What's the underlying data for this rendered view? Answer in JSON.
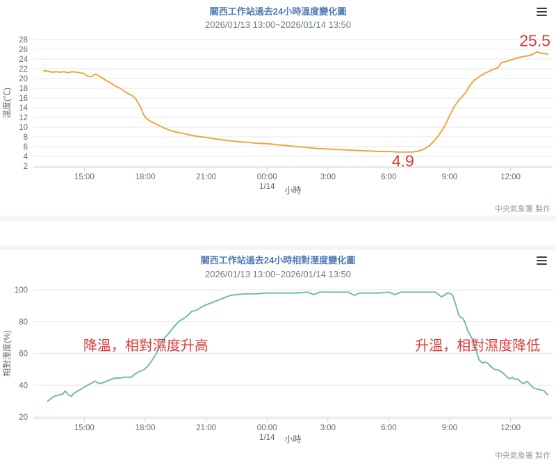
{
  "colors": {
    "title_blue": "#4e7ab5",
    "subtitle_gray": "#6e7a86",
    "axis_text": "#666666",
    "gridline": "#e7e7e7",
    "axis_line": "#ccd1d9",
    "temperature_line": "#efa63c",
    "humidity_line": "#70b9b6",
    "annotation_red": "#dc3a3a",
    "credit_gray": "#9aa0a6"
  },
  "chart_data": [
    {
      "type": "line",
      "title": "關西工作站過去24小時溫度變化圖",
      "subtitle": "2026/01/13 13:00~2026/01/14 13:50",
      "credit": "中央氣象署 製作",
      "xlabel": "小時",
      "ylabel": "溫度(℃)",
      "series_name": "temperature-series",
      "color": "#efa63c",
      "ylim": [
        2,
        28
      ],
      "ytick_step": 2,
      "x_unit": "hours since 2026/01/13 13:00",
      "xlim_hours": [
        0,
        24.83
      ],
      "grid": "horizontal",
      "legend": "none",
      "xticks": [
        {
          "t": 2,
          "label": "15:00"
        },
        {
          "t": 5,
          "label": "18:00"
        },
        {
          "t": 8,
          "label": "21:00"
        },
        {
          "t": 11,
          "label": "00:00",
          "sub": "1/14"
        },
        {
          "t": 14,
          "label": "3:00"
        },
        {
          "t": 17,
          "label": "6:00"
        },
        {
          "t": 20,
          "label": "9:00"
        },
        {
          "t": 23,
          "label": "12:00"
        }
      ],
      "series": [
        [
          0,
          21.6
        ],
        [
          0.2,
          21.5
        ],
        [
          0.4,
          21.3
        ],
        [
          0.6,
          21.4
        ],
        [
          0.8,
          21.3
        ],
        [
          1.0,
          21.4
        ],
        [
          1.2,
          21.2
        ],
        [
          1.4,
          21.4
        ],
        [
          1.6,
          21.3
        ],
        [
          1.8,
          21.2
        ],
        [
          2.0,
          21.0
        ],
        [
          2.15,
          20.5
        ],
        [
          2.35,
          20.4
        ],
        [
          2.55,
          20.9
        ],
        [
          2.7,
          20.6
        ],
        [
          2.85,
          20.2
        ],
        [
          3.0,
          19.8
        ],
        [
          3.2,
          19.3
        ],
        [
          3.4,
          18.8
        ],
        [
          3.6,
          18.3
        ],
        [
          3.8,
          17.9
        ],
        [
          4.0,
          17.3
        ],
        [
          4.2,
          16.8
        ],
        [
          4.35,
          16.5
        ],
        [
          4.5,
          16.0
        ],
        [
          4.65,
          15.0
        ],
        [
          4.8,
          13.8
        ],
        [
          4.9,
          12.8
        ],
        [
          5.0,
          12.0
        ],
        [
          5.15,
          11.5
        ],
        [
          5.3,
          11.1
        ],
        [
          5.5,
          10.7
        ],
        [
          5.75,
          10.2
        ],
        [
          6.0,
          9.7
        ],
        [
          6.25,
          9.3
        ],
        [
          6.5,
          9.0
        ],
        [
          6.75,
          8.8
        ],
        [
          7.0,
          8.6
        ],
        [
          7.3,
          8.3
        ],
        [
          7.6,
          8.1
        ],
        [
          8.0,
          7.9
        ],
        [
          8.4,
          7.6
        ],
        [
          8.8,
          7.4
        ],
        [
          9.2,
          7.2
        ],
        [
          9.6,
          7.0
        ],
        [
          10.0,
          6.9
        ],
        [
          10.5,
          6.7
        ],
        [
          11.0,
          6.6
        ],
        [
          11.5,
          6.4
        ],
        [
          12.0,
          6.2
        ],
        [
          12.5,
          6.0
        ],
        [
          13.0,
          5.8
        ],
        [
          13.5,
          5.6
        ],
        [
          14.0,
          5.5
        ],
        [
          14.5,
          5.4
        ],
        [
          15.0,
          5.3
        ],
        [
          15.5,
          5.2
        ],
        [
          16.0,
          5.1
        ],
        [
          16.5,
          5.0
        ],
        [
          17.0,
          5.0
        ],
        [
          17.4,
          4.9
        ],
        [
          17.8,
          4.9
        ],
        [
          18.2,
          4.9
        ],
        [
          18.5,
          5.1
        ],
        [
          18.8,
          5.6
        ],
        [
          19.0,
          6.2
        ],
        [
          19.2,
          7.0
        ],
        [
          19.4,
          8.0
        ],
        [
          19.6,
          9.2
        ],
        [
          19.8,
          10.6
        ],
        [
          20.0,
          12.4
        ],
        [
          20.2,
          14.0
        ],
        [
          20.4,
          15.3
        ],
        [
          20.6,
          16.2
        ],
        [
          20.8,
          17.2
        ],
        [
          21.0,
          18.6
        ],
        [
          21.2,
          19.6
        ],
        [
          21.5,
          20.5
        ],
        [
          21.8,
          21.2
        ],
        [
          22.1,
          21.8
        ],
        [
          22.4,
          22.3
        ],
        [
          22.55,
          23.3
        ],
        [
          22.8,
          23.5
        ],
        [
          23.0,
          23.8
        ],
        [
          23.3,
          24.2
        ],
        [
          23.6,
          24.5
        ],
        [
          23.9,
          24.7
        ],
        [
          24.1,
          25.0
        ],
        [
          24.3,
          25.5
        ],
        [
          24.5,
          25.2
        ],
        [
          24.7,
          25.1
        ],
        [
          24.83,
          25.0
        ]
      ],
      "annotations": [
        {
          "text": "25.5",
          "t": 24.2,
          "v": 25.5,
          "dy": -8,
          "size": 23
        },
        {
          "text": "4.9",
          "t": 17.7,
          "v": 4.9,
          "dy": 21,
          "size": 23
        }
      ]
    },
    {
      "type": "line",
      "title": "關西工作站過去24小時相對溼度變化圖",
      "subtitle": "2026/01/13 13:00~2026/01/14 13:50",
      "credit": "中央氣象署 製作",
      "xlabel": "小時",
      "ylabel": "相對溼度(%)",
      "series_name": "relative-humidity-series",
      "color": "#70b9b6",
      "ylim": [
        20,
        100
      ],
      "ytick_step": 20,
      "x_unit": "hours since 2026/01/13 13:00",
      "xlim_hours": [
        0,
        24.83
      ],
      "grid": "horizontal",
      "legend": "none",
      "xticks": [
        {
          "t": 2,
          "label": "15:00"
        },
        {
          "t": 5,
          "label": "18:00"
        },
        {
          "t": 8,
          "label": "21:00"
        },
        {
          "t": 11,
          "label": "00:00",
          "sub": "1/14"
        },
        {
          "t": 14,
          "label": "3:00"
        },
        {
          "t": 17,
          "label": "6:00"
        },
        {
          "t": 20,
          "label": "9:00"
        },
        {
          "t": 23,
          "label": "12:00"
        }
      ],
      "series": [
        [
          0.2,
          30
        ],
        [
          0.35,
          31.5
        ],
        [
          0.5,
          33
        ],
        [
          0.65,
          33.5
        ],
        [
          0.8,
          34
        ],
        [
          0.95,
          34.5
        ],
        [
          1.05,
          36.5
        ],
        [
          1.2,
          34
        ],
        [
          1.35,
          33
        ],
        [
          1.5,
          35
        ],
        [
          1.7,
          36.5
        ],
        [
          1.9,
          38
        ],
        [
          2.1,
          39.5
        ],
        [
          2.3,
          41
        ],
        [
          2.55,
          42.5
        ],
        [
          2.7,
          41
        ],
        [
          2.9,
          41.5
        ],
        [
          3.1,
          42.5
        ],
        [
          3.3,
          43.5
        ],
        [
          3.5,
          44.5
        ],
        [
          3.75,
          44.5
        ],
        [
          4.0,
          45
        ],
        [
          4.3,
          45
        ],
        [
          4.5,
          47
        ],
        [
          4.7,
          48.5
        ],
        [
          4.9,
          49.5
        ],
        [
          5.1,
          51.5
        ],
        [
          5.25,
          54
        ],
        [
          5.4,
          57
        ],
        [
          5.55,
          60
        ],
        [
          5.7,
          64
        ],
        [
          5.85,
          68
        ],
        [
          6.0,
          70.5
        ],
        [
          6.15,
          72.5
        ],
        [
          6.3,
          75
        ],
        [
          6.5,
          78
        ],
        [
          6.7,
          80.5
        ],
        [
          6.9,
          82
        ],
        [
          7.1,
          84
        ],
        [
          7.3,
          86.5
        ],
        [
          7.5,
          87
        ],
        [
          7.7,
          88.5
        ],
        [
          7.9,
          90
        ],
        [
          8.1,
          91
        ],
        [
          8.3,
          92
        ],
        [
          8.6,
          93.5
        ],
        [
          8.9,
          95
        ],
        [
          9.2,
          96.5
        ],
        [
          9.5,
          97
        ],
        [
          10.0,
          97.5
        ],
        [
          10.5,
          97.5
        ],
        [
          11.0,
          98
        ],
        [
          11.5,
          98
        ],
        [
          12.0,
          98
        ],
        [
          12.5,
          98
        ],
        [
          13.0,
          98.5
        ],
        [
          13.3,
          97
        ],
        [
          13.6,
          98.5
        ],
        [
          14.0,
          98.5
        ],
        [
          14.5,
          98.5
        ],
        [
          15.0,
          98.5
        ],
        [
          15.3,
          96.5
        ],
        [
          15.6,
          98
        ],
        [
          16.0,
          98
        ],
        [
          16.5,
          98
        ],
        [
          17.0,
          98.5
        ],
        [
          17.3,
          97
        ],
        [
          17.6,
          98.5
        ],
        [
          18.0,
          98.5
        ],
        [
          18.5,
          98.5
        ],
        [
          19.0,
          98.5
        ],
        [
          19.3,
          98.5
        ],
        [
          19.6,
          95.5
        ],
        [
          19.9,
          98
        ],
        [
          20.05,
          97.5
        ],
        [
          20.15,
          96.5
        ],
        [
          20.3,
          90.5
        ],
        [
          20.45,
          84
        ],
        [
          20.55,
          82.5
        ],
        [
          20.65,
          82
        ],
        [
          20.75,
          79.5
        ],
        [
          20.9,
          74
        ],
        [
          21.1,
          69.5
        ],
        [
          21.3,
          62
        ],
        [
          21.45,
          56
        ],
        [
          21.6,
          54
        ],
        [
          21.75,
          54.5
        ],
        [
          21.9,
          53.5
        ],
        [
          22.0,
          52
        ],
        [
          22.2,
          50
        ],
        [
          22.4,
          49.5
        ],
        [
          22.6,
          48
        ],
        [
          22.8,
          45.5
        ],
        [
          22.95,
          44
        ],
        [
          23.1,
          45
        ],
        [
          23.2,
          43.5
        ],
        [
          23.35,
          44
        ],
        [
          23.5,
          42
        ],
        [
          23.65,
          41
        ],
        [
          23.8,
          42.5
        ],
        [
          23.95,
          40.5
        ],
        [
          24.1,
          38.5
        ],
        [
          24.3,
          37.5
        ],
        [
          24.5,
          37
        ],
        [
          24.65,
          36.5
        ],
        [
          24.75,
          35
        ],
        [
          24.83,
          34
        ]
      ],
      "annotations": [
        {
          "text": "降溫，相對濕度升高",
          "t": 5.03,
          "v": 65,
          "dy": 7,
          "size": 20
        },
        {
          "text": "升溫，相對濕度降低",
          "t": 21.38,
          "v": 65,
          "dy": 7,
          "size": 20
        }
      ]
    }
  ]
}
